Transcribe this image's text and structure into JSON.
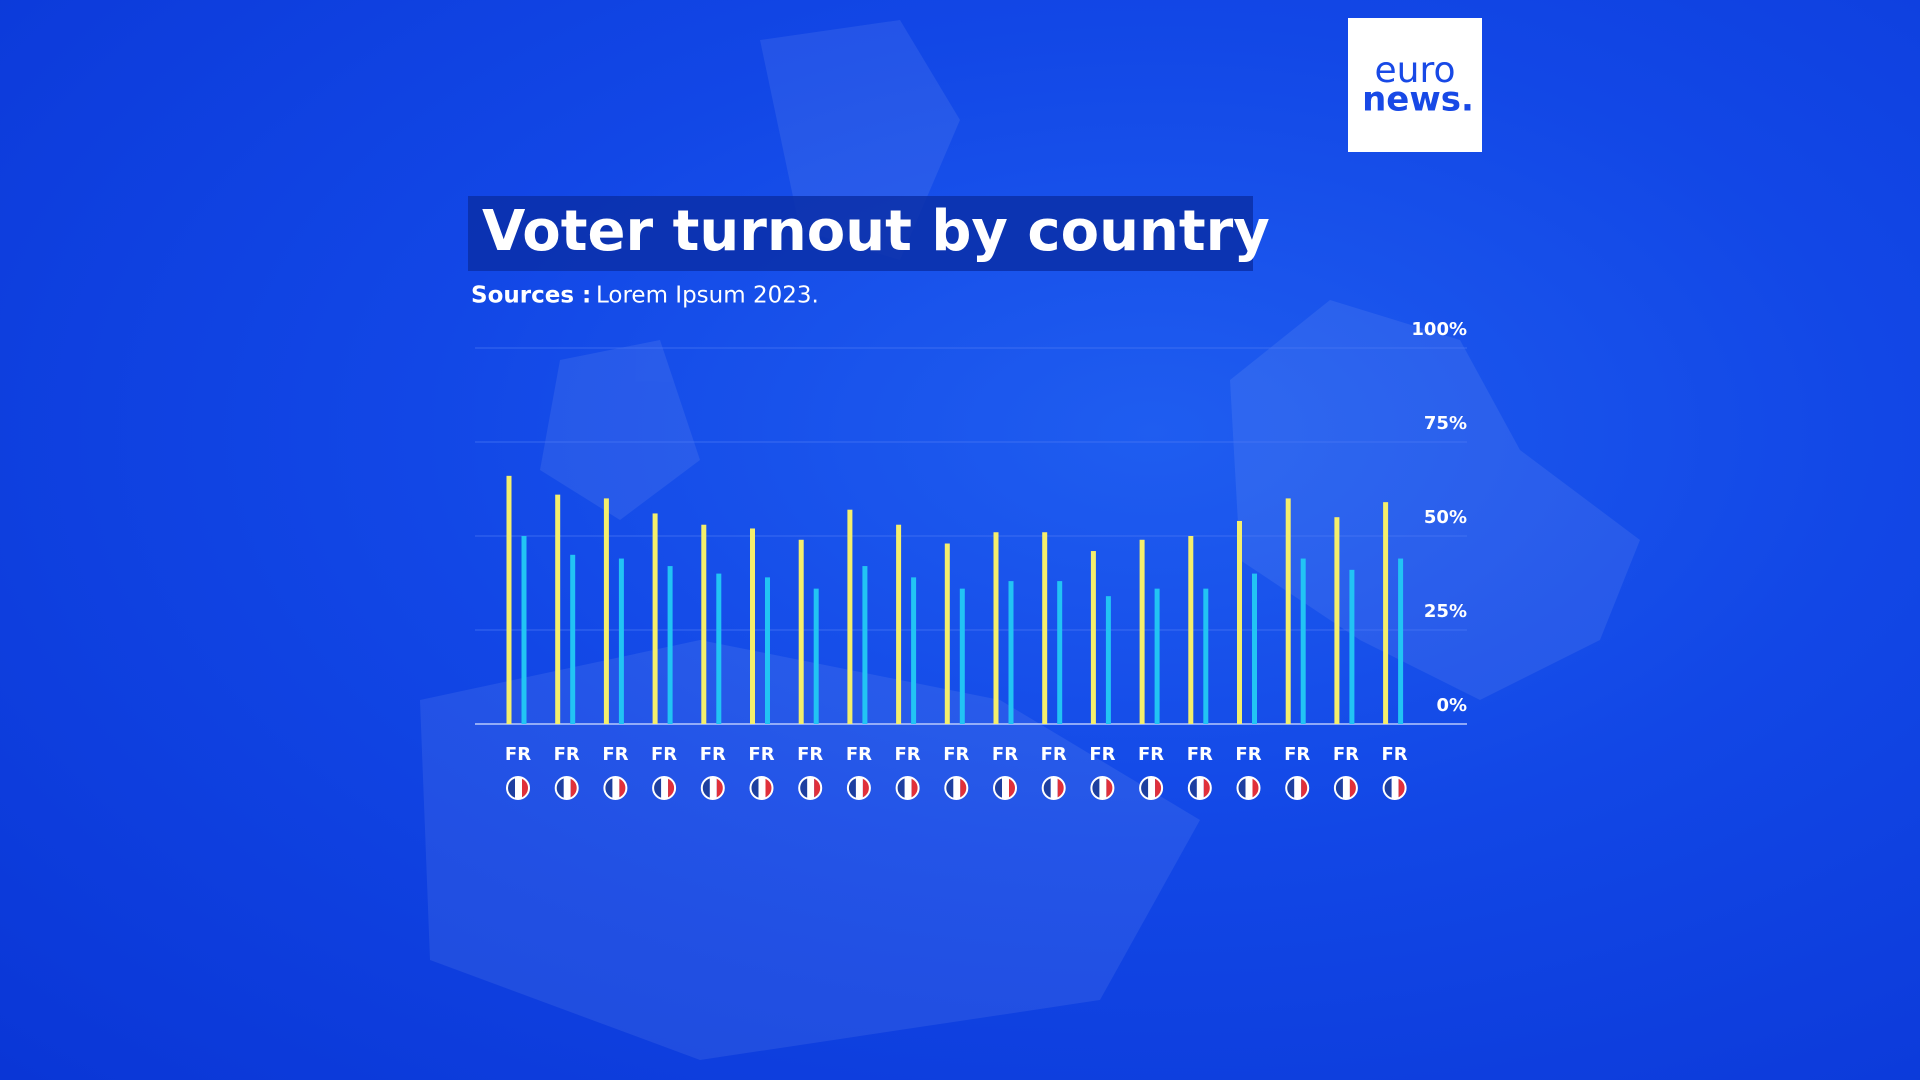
{
  "logo": {
    "line1": "euro",
    "line2": "news."
  },
  "chart_data": {
    "type": "bar",
    "title": "Voter turnout by country",
    "source_label": "Sources :",
    "source_text": "Lorem Ipsum 2023.",
    "categories": [
      "FR",
      "FR",
      "FR",
      "FR",
      "FR",
      "FR",
      "FR",
      "FR",
      "FR",
      "FR",
      "FR",
      "FR",
      "FR",
      "FR",
      "FR",
      "FR",
      "FR",
      "FR",
      "FR"
    ],
    "series": [
      {
        "color": "#f4ee6c",
        "values": [
          66,
          61,
          60,
          56,
          53,
          52,
          49,
          57,
          53,
          48,
          51,
          51,
          46,
          49,
          50,
          54,
          60,
          55,
          59
        ]
      },
      {
        "color": "#22c4f4",
        "values": [
          50,
          45,
          44,
          42,
          40,
          39,
          36,
          42,
          39,
          36,
          38,
          38,
          34,
          36,
          36,
          40,
          44,
          41,
          44
        ]
      }
    ],
    "ylim": [
      0,
      100
    ],
    "yticks": [
      {
        "value": 0,
        "label": "0%"
      },
      {
        "value": 25,
        "label": "25%"
      },
      {
        "value": 50,
        "label": "50%"
      },
      {
        "value": 75,
        "label": "75%"
      },
      {
        "value": 100,
        "label": "100%"
      }
    ],
    "grid": true
  }
}
